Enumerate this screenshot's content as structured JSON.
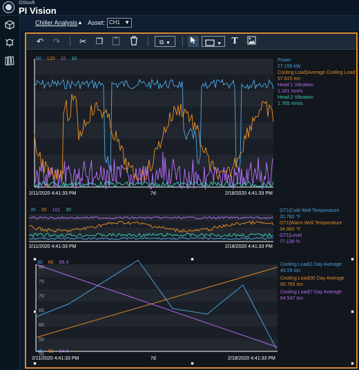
{
  "app": {
    "vendor": "OSIsoft",
    "name": "PI Vision"
  },
  "nav": [
    "cube-icon",
    "alarm-bell-icon",
    "library-books-icon"
  ],
  "topbar": {
    "display_name": "Chiller Analysis",
    "display_caret": "▲",
    "asset_label": "Asset:",
    "asset_value": "CH1",
    "asset_arrow": "▼"
  },
  "toolbar": {
    "icons": [
      "undo-icon",
      "redo-icon",
      "cut-icon",
      "copy-icon",
      "paste-icon",
      "delete-icon",
      "arrange-icon",
      "chevron-down-icon",
      "pointer-icon",
      "rectangle-icon",
      "chevron-down-icon",
      "text-icon",
      "image-icon"
    ],
    "glyphs": {
      "undo": "↶",
      "redo": "↷",
      "cut": "✂",
      "copy": "❐",
      "paste": "📋",
      "delete": "🗑",
      "arrange": "⧉",
      "caret": "▼",
      "pointer": "➤",
      "rect": "▭",
      "text": "T",
      "image": "▣"
    }
  },
  "colors": {
    "blue": "#4a9fd8",
    "orange": "#e08a25",
    "purple": "#b26cf0",
    "teal": "#3fc7b6",
    "accent": "#d88a2f"
  },
  "trend1": {
    "scale_top": [
      "60",
      "120",
      "10",
      "10"
    ],
    "scale_bottom": [
      "0",
      "20",
      "0",
      "0"
    ],
    "legend": [
      {
        "name": "Power",
        "value": "27.156 kW",
        "color": "#4a9fd8"
      },
      {
        "name": "Cooling Load|Average Cooling Load",
        "value": "57.815 ton",
        "color": "#e08a25"
      },
      {
        "name": "Head 1 Vibration",
        "value": "1.161 mm/s",
        "color": "#b26cf0"
      },
      {
        "name": "Head 2 Vibration",
        "value": "1.765 mm/s",
        "color": "#3fc7b6"
      }
    ],
    "start": "2/11/2020 4:41:33 PM",
    "duration": "7d",
    "end": "2/18/2020 4:41:33 PM"
  },
  "trend2": {
    "scale_top": [
      "35",
      "35",
      "101",
      "35"
    ],
    "legend": [
      {
        "name": "GT1|Cold Well Temperature",
        "value": "20.782 °F",
        "color": "#4a9fd8"
      },
      {
        "name": "GT1|Warm Well Temperature",
        "value": "34.983 °F",
        "color": "#e08a25"
      },
      {
        "name": "GT1|Level",
        "value": "77.138 %",
        "color": "#b26cf0"
      }
    ],
    "start": "2/11/2020 4:41:33 PM",
    "end": "2/18/2020 4:41:33 PM"
  },
  "trend3": {
    "scale_top": [
      "80",
      "66",
      "66.4"
    ],
    "scale_bottom": [
      "45",
      "63",
      "64.4"
    ],
    "y_ticks": [
      "80",
      "75",
      "70",
      "65",
      "60",
      "55",
      "50"
    ],
    "legend": [
      {
        "name": "Cooling Load|1 Day Average",
        "value": "46.59 ton",
        "color": "#4a9fd8"
      },
      {
        "name": "Cooling Load|30 Day Average",
        "value": "65.765 ton",
        "color": "#e08a25"
      },
      {
        "name": "Cooling Load|7 Day Average",
        "value": "64.547 ton",
        "color": "#b26cf0"
      }
    ],
    "start": "2/11/2020 4:41:33 PM",
    "duration": "7d",
    "end": "2/18/2020 4:41:33 PM"
  }
}
